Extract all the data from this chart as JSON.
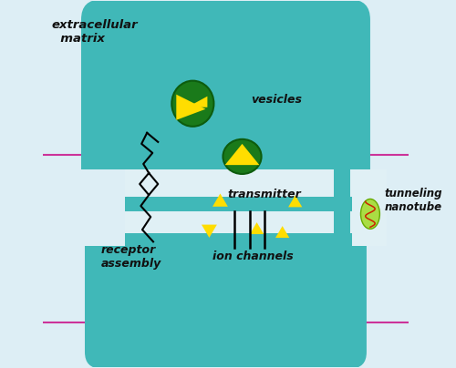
{
  "bg_color": "#ddeef5",
  "cell_color": "#40b8b8",
  "cell_gap_color": "#e0f0f5",
  "grid_color": "#cc3399",
  "vesicle_color": "#1a7a1a",
  "vesicle_yellow": "#ffdd00",
  "nanotube_green": "#aadd44",
  "nanotube_red": "#cc2200",
  "text_color": "#111111",
  "label_extracellular": "extracellular\n  matrix",
  "label_vesicles": "vesicles",
  "label_transmitter": "transmitter",
  "label_receptor": "receptor\nassembly",
  "label_ion": "ion channels",
  "label_nanotube": "tunneling\nnanotube",
  "grid_verticals": [
    2.3,
    4.7,
    7.7
  ],
  "grid_horizontals": [
    1.2,
    5.8
  ]
}
